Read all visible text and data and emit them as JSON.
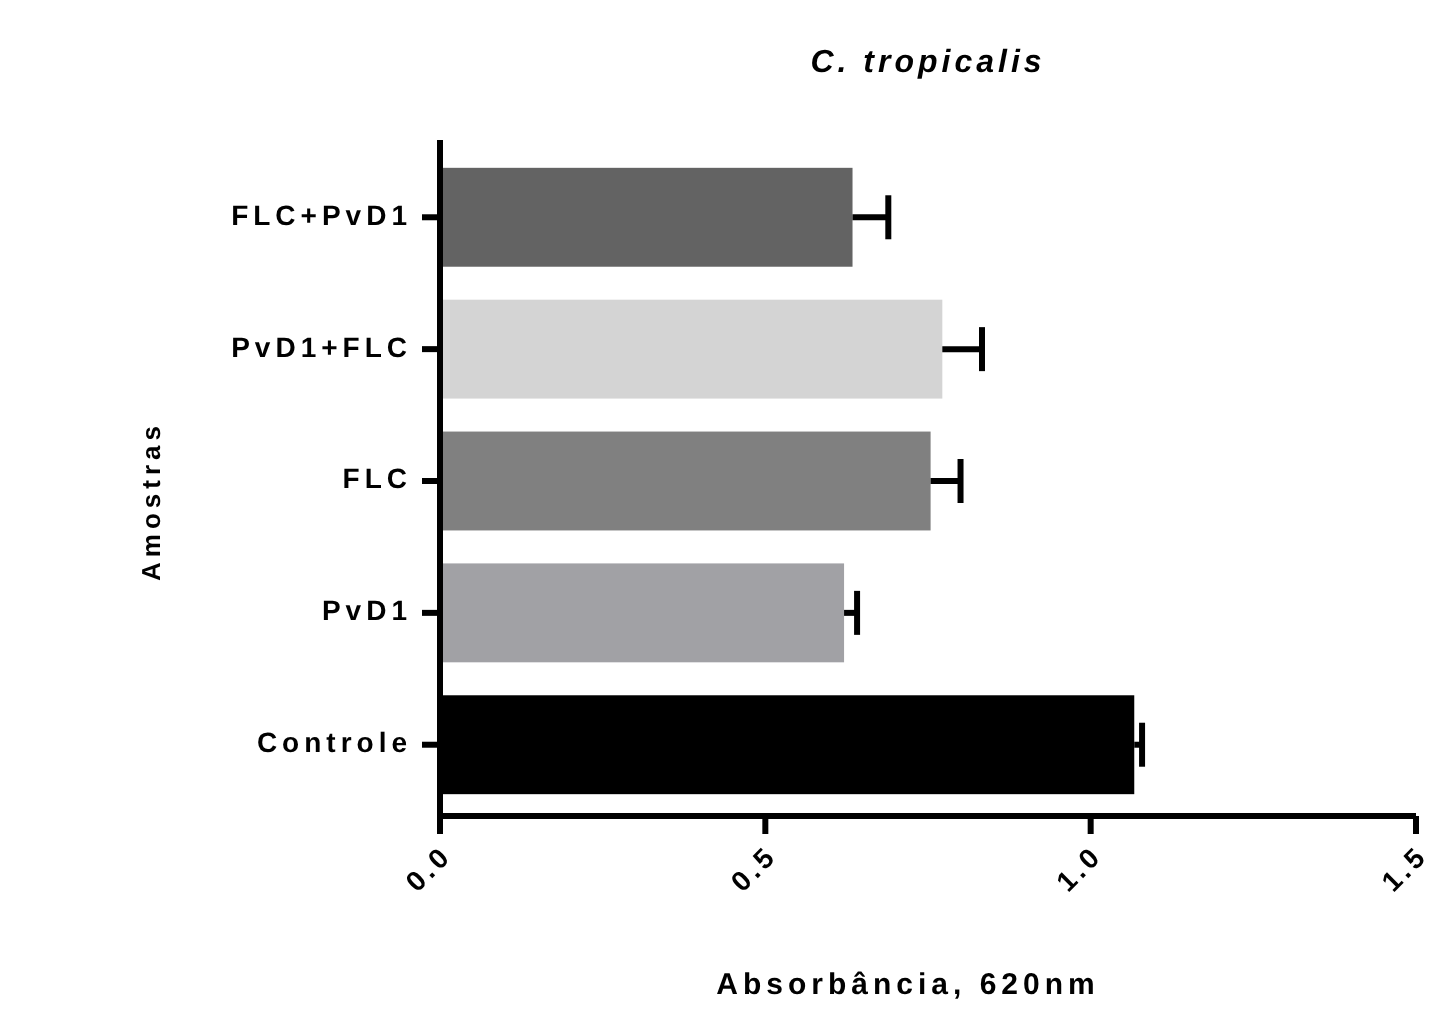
{
  "chart_data": {
    "type": "bar",
    "orientation": "horizontal",
    "title": "C. tropicalis",
    "xlabel": "Absorbância, 620nm",
    "ylabel": "Amostras",
    "categories": [
      "FLC+PvD1",
      "PvD1+FLC",
      "FLC",
      "PvD1",
      "Controle"
    ],
    "values": [
      0.634,
      0.772,
      0.754,
      0.621,
      1.067
    ],
    "errors": [
      [
        0.634,
        0.689
      ],
      [
        0.772,
        0.833
      ],
      [
        0.754,
        0.8
      ],
      [
        0.621,
        0.641
      ],
      [
        1.067,
        1.079
      ]
    ],
    "colors": [
      "#636363",
      "#d4d4d4",
      "#808080",
      "#a1a1a5",
      "#000000"
    ],
    "xlim": [
      0,
      1.5
    ],
    "xticks": [
      {
        "value": 0,
        "label": "0.0"
      },
      {
        "value": 0.5,
        "label": "0.5"
      },
      {
        "value": 1,
        "label": "1.0"
      },
      {
        "value": 1.5,
        "label": "1.5"
      }
    ],
    "grid": false
  }
}
